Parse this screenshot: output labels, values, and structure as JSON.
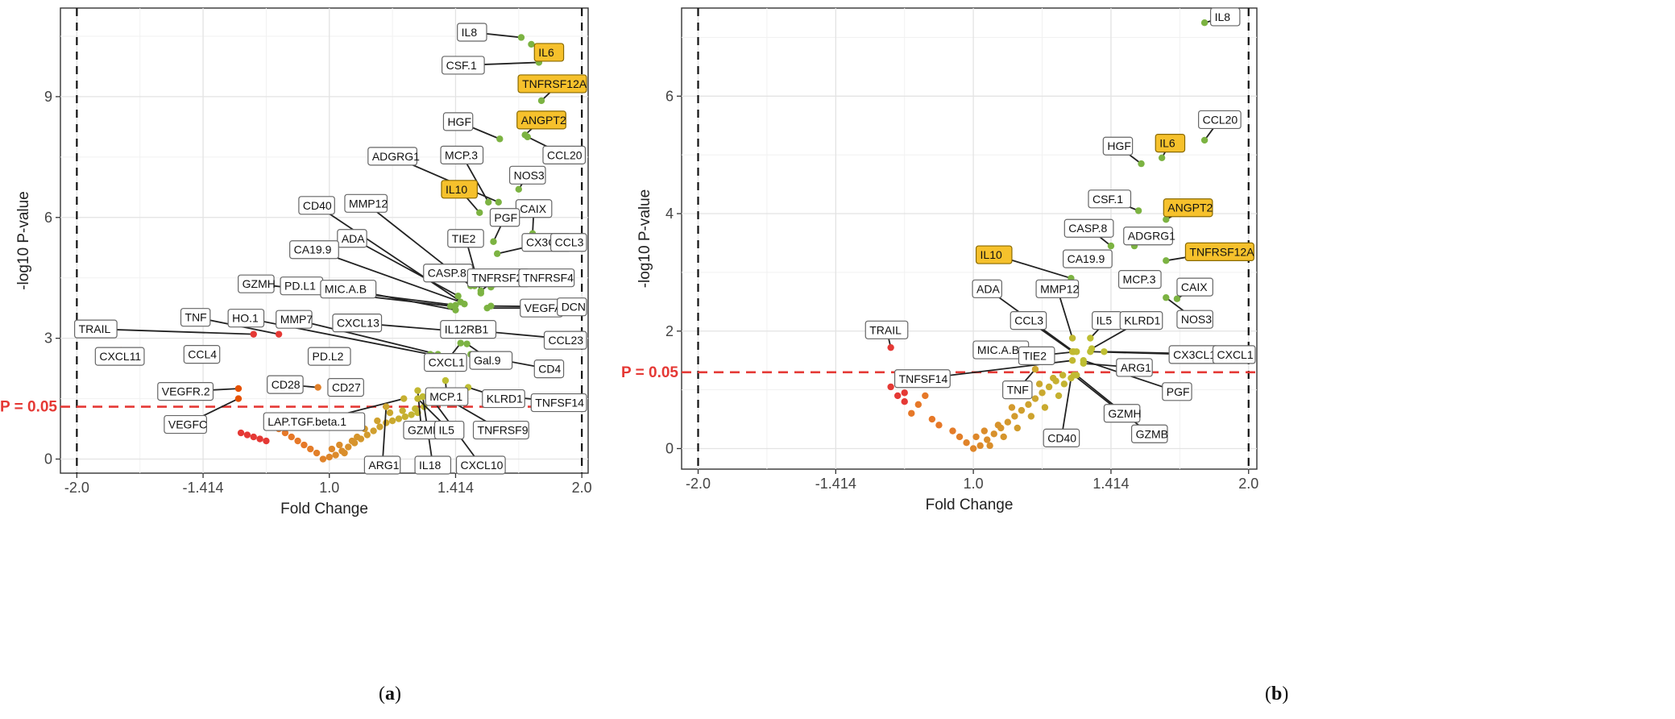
{
  "chart_data": [
    {
      "type": "scatter",
      "subtype": "volcano",
      "panel": "a",
      "caption": "a",
      "xlabel": "Fold Change",
      "ylabel": "-log10 P-value",
      "xlim": [
        -2.13,
        2.05
      ],
      "ylim": [
        -0.35,
        11.2
      ],
      "x_ticks": [
        {
          "v": -2,
          "label": "-2.0"
        },
        {
          "v": -1,
          "label": "-1.414"
        },
        {
          "v": 0,
          "label": "1.0"
        },
        {
          "v": 1,
          "label": "1.414"
        },
        {
          "v": 2,
          "label": "2.0"
        }
      ],
      "y_ticks": [
        {
          "v": 0,
          "label": "0"
        },
        {
          "v": 3,
          "label": "3"
        },
        {
          "v": 6,
          "label": "6"
        },
        {
          "v": 9,
          "label": "9"
        }
      ],
      "vlines": [
        -2,
        2
      ],
      "threshold": {
        "y": 1.3,
        "label": "P = 0.05"
      },
      "labeled_points": [
        {
          "name": "IL8",
          "x": 1.52,
          "y": 10.47,
          "hl": false,
          "lx": 1.13,
          "ly": 10.6
        },
        {
          "name": "IL6",
          "x": 1.6,
          "y": 10.3,
          "hl": true,
          "lx": 1.74,
          "ly": 10.1
        },
        {
          "name": "CSF.1",
          "x": 1.66,
          "y": 9.85,
          "hl": false,
          "lx": 1.06,
          "ly": 9.78
        },
        {
          "name": "TNFRSF12A",
          "x": 1.68,
          "y": 8.9,
          "hl": true,
          "lx": 1.82,
          "ly": 9.32
        },
        {
          "name": "HGF",
          "x": 1.35,
          "y": 7.95,
          "hl": false,
          "lx": 1.02,
          "ly": 8.38
        },
        {
          "name": "ANGPT2",
          "x": 1.55,
          "y": 8.05,
          "hl": true,
          "lx": 1.68,
          "ly": 8.42
        },
        {
          "name": "CCL20",
          "x": 1.57,
          "y": 8.0,
          "hl": false,
          "lx": 1.86,
          "ly": 7.55
        },
        {
          "name": "ADGRG1",
          "x": 1.34,
          "y": 6.38,
          "hl": false,
          "lx": 0.5,
          "ly": 7.52
        },
        {
          "name": "MCP.3",
          "x": 1.26,
          "y": 6.38,
          "hl": false,
          "lx": 1.05,
          "ly": 7.55
        },
        {
          "name": "NOS3",
          "x": 1.5,
          "y": 6.7,
          "hl": false,
          "lx": 1.57,
          "ly": 7.05
        },
        {
          "name": "IL10",
          "x": 1.19,
          "y": 6.12,
          "hl": true,
          "lx": 1.03,
          "ly": 6.7
        },
        {
          "name": "MMP12",
          "x": 1.12,
          "y": 4.3,
          "hl": false,
          "lx": 0.29,
          "ly": 6.35
        },
        {
          "name": "CD40",
          "x": 1.07,
          "y": 3.85,
          "hl": false,
          "lx": -0.1,
          "ly": 6.3
        },
        {
          "name": "CAIX",
          "x": 1.61,
          "y": 5.6,
          "hl": false,
          "lx": 1.62,
          "ly": 6.22
        },
        {
          "name": "PGF",
          "x": 1.3,
          "y": 5.4,
          "hl": false,
          "lx": 1.39,
          "ly": 6.0
        },
        {
          "name": "ADA",
          "x": 1.02,
          "y": 4.05,
          "hl": false,
          "lx": 0.18,
          "ly": 5.48
        },
        {
          "name": "TIE2",
          "x": 1.2,
          "y": 4.12,
          "hl": false,
          "lx": 1.08,
          "ly": 5.48
        },
        {
          "name": "CX3CL1",
          "x": 1.33,
          "y": 5.1,
          "hl": false,
          "lx": 1.72,
          "ly": 5.38
        },
        {
          "name": "CCL3",
          "x": 1.92,
          "y": 5.3,
          "hl": false,
          "lx": 1.97,
          "ly": 5.38
        },
        {
          "name": "CA19.9",
          "x": 1.04,
          "y": 3.9,
          "hl": false,
          "lx": -0.12,
          "ly": 5.2
        },
        {
          "name": "CASP.8",
          "x": 1.15,
          "y": 4.3,
          "hl": false,
          "lx": 0.94,
          "ly": 4.62
        },
        {
          "name": "TNFRSF21",
          "x": 1.2,
          "y": 4.18,
          "hl": false,
          "lx": 1.34,
          "ly": 4.5
        },
        {
          "name": "TNFRSF4",
          "x": 1.28,
          "y": 4.27,
          "hl": false,
          "lx": 1.72,
          "ly": 4.5
        },
        {
          "name": "GZMH",
          "x": 0.96,
          "y": 3.8,
          "hl": false,
          "lx": -0.58,
          "ly": 4.35
        },
        {
          "name": "PD.L1",
          "x": 1.0,
          "y": 3.82,
          "hl": false,
          "lx": -0.22,
          "ly": 4.3
        },
        {
          "name": "MIC.A.B",
          "x": 1.0,
          "y": 3.7,
          "hl": false,
          "lx": 0.15,
          "ly": 4.22
        },
        {
          "name": "VEGFA",
          "x": 1.25,
          "y": 3.75,
          "hl": false,
          "lx": 1.68,
          "ly": 3.75
        },
        {
          "name": "DCN",
          "x": 1.28,
          "y": 3.8,
          "hl": false,
          "lx": 1.98,
          "ly": 3.78
        },
        {
          "name": "TRAIL",
          "x": -0.6,
          "y": 3.1,
          "hl": false,
          "lx": -1.85,
          "ly": 3.23
        },
        {
          "name": "TNF",
          "x": -0.4,
          "y": 3.1,
          "hl": false,
          "lx": -1.06,
          "ly": 3.52
        },
        {
          "name": "HO.1",
          "x": 0.8,
          "y": 2.6,
          "hl": false,
          "lx": -0.66,
          "ly": 3.5
        },
        {
          "name": "MMP7",
          "x": 0.86,
          "y": 2.6,
          "hl": false,
          "lx": -0.28,
          "ly": 3.47
        },
        {
          "name": "CXCL13",
          "x": 0.92,
          "y": 3.2,
          "hl": false,
          "lx": 0.22,
          "ly": 3.38
        },
        {
          "name": "IL12RB1",
          "x": 1.12,
          "y": 3.3,
          "hl": false,
          "lx": 1.1,
          "ly": 3.22
        },
        {
          "name": "CCL23",
          "x": 1.12,
          "y": 3.2,
          "hl": false,
          "lx": 1.99,
          "ly": 2.95
        },
        {
          "name": "CXCL1",
          "x": 1.04,
          "y": 2.88,
          "hl": false,
          "lx": 0.92,
          "ly": 2.4
        },
        {
          "name": "Gal.9",
          "x": 1.09,
          "y": 2.86,
          "hl": false,
          "lx": 1.28,
          "ly": 2.45
        },
        {
          "name": "CD4",
          "x": 1.12,
          "y": 2.6,
          "hl": false,
          "lx": 1.74,
          "ly": 2.24
        },
        {
          "name": "CXCL11",
          "x": -1.65,
          "y": 2.7,
          "hl": false,
          "lx": -1.66,
          "ly": 2.55
        },
        {
          "name": "CCL4",
          "x": -0.97,
          "y": 2.7,
          "hl": false,
          "lx": -1.01,
          "ly": 2.6
        },
        {
          "name": "PD.L2",
          "x": 0.05,
          "y": 2.5,
          "hl": false,
          "lx": 0.0,
          "ly": 2.55
        },
        {
          "name": "MCP.1",
          "x": 0.92,
          "y": 1.95,
          "hl": false,
          "lx": 0.93,
          "ly": 1.55
        },
        {
          "name": "KLRD1",
          "x": 1.1,
          "y": 1.78,
          "hl": false,
          "lx": 1.38,
          "ly": 1.5
        },
        {
          "name": "TNFSF14",
          "x": 1.25,
          "y": 1.6,
          "hl": false,
          "lx": 1.9,
          "ly": 1.4
        },
        {
          "name": "VEGFR.2",
          "x": -0.72,
          "y": 1.75,
          "hl": false,
          "lx": -1.14,
          "ly": 1.68
        },
        {
          "name": "CD28",
          "x": -0.09,
          "y": 1.78,
          "hl": false,
          "lx": -0.35,
          "ly": 1.85
        },
        {
          "name": "CD27",
          "x": 0.15,
          "y": 1.78,
          "hl": false,
          "lx": 0.13,
          "ly": 1.78
        },
        {
          "name": "VEGFC",
          "x": -0.72,
          "y": 1.5,
          "hl": false,
          "lx": -1.14,
          "ly": 0.86
        },
        {
          "name": "LAP.TGF.beta.1",
          "x": 0.59,
          "y": 1.5,
          "hl": false,
          "lx": -0.12,
          "ly": 0.93
        },
        {
          "name": "GZMB",
          "x": 0.7,
          "y": 1.7,
          "hl": false,
          "lx": 0.73,
          "ly": 0.72
        },
        {
          "name": "TNFRSF9",
          "x": 0.82,
          "y": 1.7,
          "hl": false,
          "lx": 1.36,
          "ly": 0.72
        },
        {
          "name": "ARG1",
          "x": 0.45,
          "y": 1.3,
          "hl": false,
          "lx": 0.42,
          "ly": -0.15
        },
        {
          "name": "IL5",
          "x": 0.7,
          "y": 1.5,
          "hl": false,
          "lx": 0.95,
          "ly": 0.72
        },
        {
          "name": "IL18",
          "x": 0.74,
          "y": 1.55,
          "hl": false,
          "lx": 0.82,
          "ly": -0.15
        },
        {
          "name": "CXCL10",
          "x": 0.8,
          "y": 1.55,
          "hl": false,
          "lx": 1.2,
          "ly": -0.15
        }
      ],
      "unlabeled_points": [
        [
          -0.05,
          0.0
        ],
        [
          0.0,
          0.05
        ],
        [
          0.05,
          0.1
        ],
        [
          -0.1,
          0.15
        ],
        [
          0.1,
          0.2
        ],
        [
          -0.15,
          0.25
        ],
        [
          0.15,
          0.3
        ],
        [
          -0.2,
          0.35
        ],
        [
          0.2,
          0.4
        ],
        [
          -0.25,
          0.45
        ],
        [
          0.25,
          0.5
        ],
        [
          -0.3,
          0.55
        ],
        [
          0.3,
          0.6
        ],
        [
          -0.35,
          0.65
        ],
        [
          0.35,
          0.7
        ],
        [
          -0.4,
          0.75
        ],
        [
          0.4,
          0.8
        ],
        [
          -0.45,
          0.85
        ],
        [
          0.45,
          0.9
        ],
        [
          0.5,
          0.95
        ],
        [
          0.55,
          1.0
        ],
        [
          0.6,
          1.05
        ],
        [
          0.65,
          1.1
        ],
        [
          0.7,
          1.15
        ],
        [
          -0.5,
          0.45
        ],
        [
          -0.55,
          0.5
        ],
        [
          -0.6,
          0.55
        ],
        [
          -0.65,
          0.6
        ],
        [
          -0.7,
          0.65
        ],
        [
          0.02,
          0.25
        ],
        [
          0.08,
          0.35
        ],
        [
          0.12,
          0.15
        ],
        [
          0.22,
          0.55
        ],
        [
          0.28,
          0.75
        ],
        [
          0.38,
          0.95
        ],
        [
          0.48,
          1.15
        ],
        [
          0.58,
          1.2
        ],
        [
          0.68,
          1.25
        ],
        [
          0.75,
          1.3
        ],
        [
          0.18,
          0.45
        ]
      ]
    },
    {
      "type": "scatter",
      "subtype": "volcano",
      "panel": "b",
      "caption": "b",
      "xlabel": "Fold Change",
      "ylabel": "-log10 P-value",
      "xlim": [
        -2.12,
        2.06
      ],
      "ylim": [
        -0.35,
        7.5
      ],
      "x_ticks": [
        {
          "v": -2,
          "label": "-2.0"
        },
        {
          "v": -1,
          "label": "-1.414"
        },
        {
          "v": 0,
          "label": "1.0"
        },
        {
          "v": 1,
          "label": "1.414"
        },
        {
          "v": 2,
          "label": "2.0"
        }
      ],
      "y_ticks": [
        {
          "v": 0,
          "label": "0"
        },
        {
          "v": 2,
          "label": "2"
        },
        {
          "v": 4,
          "label": "4"
        },
        {
          "v": 6,
          "label": "6"
        }
      ],
      "vlines": [
        -2,
        2
      ],
      "threshold": {
        "y": 1.3,
        "label": "P = 0.05"
      },
      "labeled_points": [
        {
          "name": "IL8",
          "x": 1.68,
          "y": 7.25,
          "hl": false,
          "lx": 1.83,
          "ly": 7.35
        },
        {
          "name": "CCL20",
          "x": 1.68,
          "y": 5.25,
          "hl": false,
          "lx": 1.79,
          "ly": 5.6
        },
        {
          "name": "HGF",
          "x": 1.22,
          "y": 4.85,
          "hl": false,
          "lx": 1.05,
          "ly": 5.15
        },
        {
          "name": "IL6",
          "x": 1.37,
          "y": 4.95,
          "hl": true,
          "lx": 1.43,
          "ly": 5.2
        },
        {
          "name": "CSF.1",
          "x": 1.2,
          "y": 4.05,
          "hl": false,
          "lx": 0.99,
          "ly": 4.25
        },
        {
          "name": "ANGPT2",
          "x": 1.4,
          "y": 3.9,
          "hl": true,
          "lx": 1.56,
          "ly": 4.1
        },
        {
          "name": "CASP.8",
          "x": 1.0,
          "y": 3.45,
          "hl": false,
          "lx": 0.84,
          "ly": 3.75
        },
        {
          "name": "ADGRG1",
          "x": 1.17,
          "y": 3.45,
          "hl": false,
          "lx": 1.27,
          "ly": 3.62
        },
        {
          "name": "TNFRSF12A",
          "x": 1.4,
          "y": 3.2,
          "hl": true,
          "lx": 1.79,
          "ly": 3.35
        },
        {
          "name": "IL10",
          "x": 0.71,
          "y": 2.9,
          "hl": true,
          "lx": 0.15,
          "ly": 3.3
        },
        {
          "name": "CA19.9",
          "x": 0.97,
          "y": 3.25,
          "hl": false,
          "lx": 0.83,
          "ly": 3.23
        },
        {
          "name": "MCP.3",
          "x": 1.17,
          "y": 2.85,
          "hl": false,
          "lx": 1.21,
          "ly": 2.88
        },
        {
          "name": "CAIX",
          "x": 1.48,
          "y": 2.55,
          "hl": false,
          "lx": 1.61,
          "ly": 2.75
        },
        {
          "name": "NOS3",
          "x": 1.4,
          "y": 2.57,
          "hl": false,
          "lx": 1.61,
          "ly": 2.2
        },
        {
          "name": "ADA",
          "x": 0.73,
          "y": 1.65,
          "hl": false,
          "lx": 0.1,
          "ly": 2.72
        },
        {
          "name": "MMP12",
          "x": 0.72,
          "y": 1.88,
          "hl": false,
          "lx": 0.61,
          "ly": 2.72
        },
        {
          "name": "CCL3",
          "x": 0.72,
          "y": 1.65,
          "hl": false,
          "lx": 0.4,
          "ly": 2.18
        },
        {
          "name": "IL5",
          "x": 0.85,
          "y": 1.88,
          "hl": false,
          "lx": 0.97,
          "ly": 2.18
        },
        {
          "name": "KLRD1",
          "x": 0.86,
          "y": 1.7,
          "hl": false,
          "lx": 1.22,
          "ly": 2.18
        },
        {
          "name": "TRAIL",
          "x": -0.6,
          "y": 1.72,
          "hl": false,
          "lx": -0.63,
          "ly": 2.02
        },
        {
          "name": "MIC.A.B",
          "x": 0.35,
          "y": 1.75,
          "hl": false,
          "lx": 0.2,
          "ly": 1.68
        },
        {
          "name": "TIE2",
          "x": 0.75,
          "y": 1.65,
          "hl": false,
          "lx": 0.46,
          "ly": 1.58
        },
        {
          "name": "CX3CL1",
          "x": 0.85,
          "y": 1.65,
          "hl": false,
          "lx": 1.6,
          "ly": 1.6
        },
        {
          "name": "CXCL1",
          "x": 0.95,
          "y": 1.65,
          "hl": false,
          "lx": 1.9,
          "ly": 1.6
        },
        {
          "name": "TNFSF14",
          "x": 0.72,
          "y": 1.5,
          "hl": false,
          "lx": -0.37,
          "ly": 1.19
        },
        {
          "name": "ARG1",
          "x": 0.8,
          "y": 1.45,
          "hl": false,
          "lx": 1.17,
          "ly": 1.38
        },
        {
          "name": "TNF",
          "x": 0.45,
          "y": 1.35,
          "hl": false,
          "lx": 0.32,
          "ly": 1.0
        },
        {
          "name": "PGF",
          "x": 0.8,
          "y": 1.5,
          "hl": false,
          "lx": 1.48,
          "ly": 0.97
        },
        {
          "name": "GZMH",
          "x": 0.73,
          "y": 1.25,
          "hl": false,
          "lx": 1.08,
          "ly": 0.6
        },
        {
          "name": "GZMB",
          "x": 0.75,
          "y": 1.25,
          "hl": false,
          "lx": 1.28,
          "ly": 0.25
        },
        {
          "name": "CD40",
          "x": 0.71,
          "y": 1.2,
          "hl": false,
          "lx": 0.64,
          "ly": 0.18
        }
      ],
      "unlabeled_points": [
        [
          -0.6,
          1.05
        ],
        [
          -0.55,
          0.9
        ],
        [
          -0.5,
          0.8
        ],
        [
          -0.45,
          0.6
        ],
        [
          -0.4,
          0.75
        ],
        [
          -0.3,
          0.5
        ],
        [
          -0.25,
          0.4
        ],
        [
          -0.15,
          0.3
        ],
        [
          -0.1,
          0.2
        ],
        [
          -0.05,
          0.1
        ],
        [
          0.0,
          0.0
        ],
        [
          0.05,
          0.05
        ],
        [
          0.1,
          0.15
        ],
        [
          0.15,
          0.25
        ],
        [
          0.2,
          0.35
        ],
        [
          0.25,
          0.45
        ],
        [
          0.3,
          0.55
        ],
        [
          0.35,
          0.65
        ],
        [
          0.4,
          0.75
        ],
        [
          0.45,
          0.85
        ],
        [
          0.5,
          0.95
        ],
        [
          0.55,
          1.05
        ],
        [
          0.6,
          1.15
        ],
        [
          0.65,
          1.25
        ],
        [
          -0.35,
          0.9
        ],
        [
          -0.5,
          0.95
        ],
        [
          0.08,
          0.3
        ],
        [
          0.18,
          0.4
        ],
        [
          0.28,
          0.7
        ],
        [
          0.38,
          0.9
        ],
        [
          0.48,
          1.1
        ],
        [
          0.58,
          1.2
        ],
        [
          0.02,
          0.2
        ],
        [
          0.12,
          0.05
        ],
        [
          0.22,
          0.2
        ],
        [
          0.32,
          0.35
        ],
        [
          0.42,
          0.55
        ],
        [
          0.52,
          0.7
        ],
        [
          0.62,
          0.9
        ],
        [
          0.66,
          1.1
        ]
      ]
    }
  ]
}
